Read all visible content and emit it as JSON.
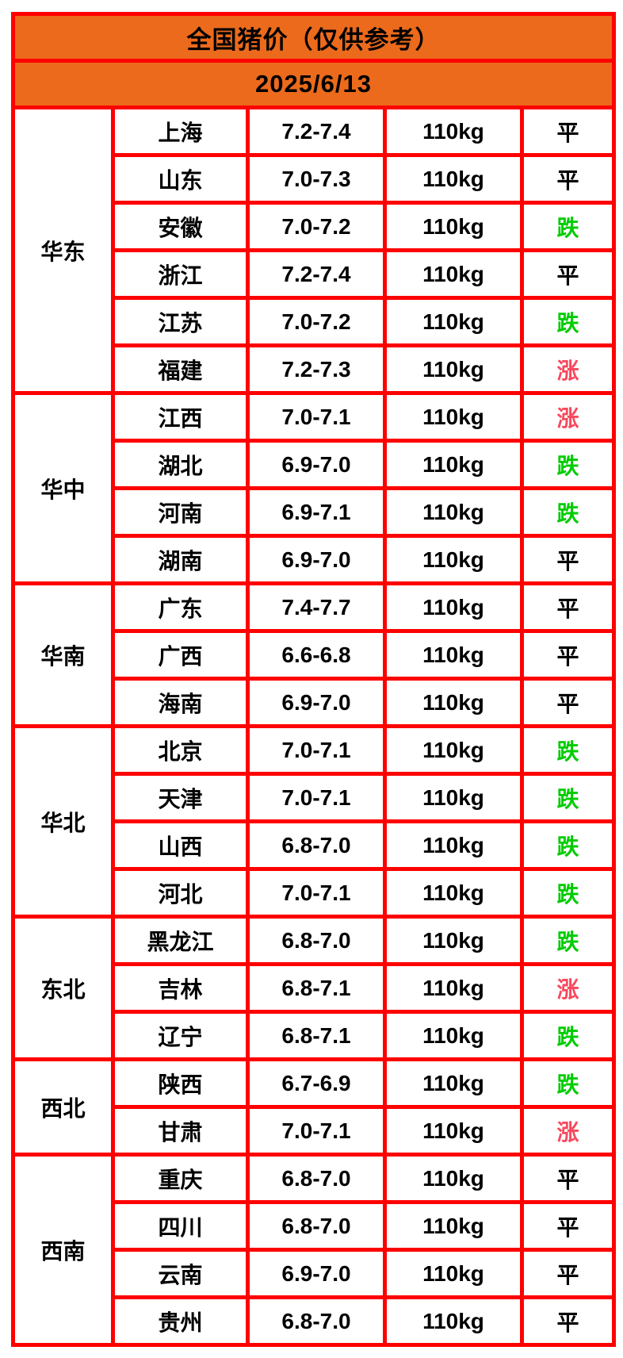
{
  "header": {
    "title": "全国猪价（仅供参考）",
    "date": "2025/6/13"
  },
  "colors": {
    "header_bg": "#EC6A1C",
    "grid": "#FF0000",
    "text": "#000000",
    "up": "#F8485C",
    "down": "#00CC00",
    "flat": "#000000"
  },
  "chart_data": {
    "type": "table",
    "title": "全国猪价（仅供参考）",
    "subtitle": "2025/6/13",
    "rows": [
      [
        "华东",
        "上海",
        "7.2-7.4",
        "110kg",
        "平",
        "flat"
      ],
      [
        "华东",
        "山东",
        "7.0-7.3",
        "110kg",
        "平",
        "flat"
      ],
      [
        "华东",
        "安徽",
        "7.0-7.2",
        "110kg",
        "跌",
        "down"
      ],
      [
        "华东",
        "浙江",
        "7.2-7.4",
        "110kg",
        "平",
        "flat"
      ],
      [
        "华东",
        "江苏",
        "7.0-7.2",
        "110kg",
        "跌",
        "down"
      ],
      [
        "华东",
        "福建",
        "7.2-7.3",
        "110kg",
        "涨",
        "up"
      ],
      [
        "华中",
        "江西",
        "7.0-7.1",
        "110kg",
        "涨",
        "up"
      ],
      [
        "华中",
        "湖北",
        "6.9-7.0",
        "110kg",
        "跌",
        "down"
      ],
      [
        "华中",
        "河南",
        "6.9-7.1",
        "110kg",
        "跌",
        "down"
      ],
      [
        "华中",
        "湖南",
        "6.9-7.0",
        "110kg",
        "平",
        "flat"
      ],
      [
        "华南",
        "广东",
        "7.4-7.7",
        "110kg",
        "平",
        "flat"
      ],
      [
        "华南",
        "广西",
        "6.6-6.8",
        "110kg",
        "平",
        "flat"
      ],
      [
        "华南",
        "海南",
        "6.9-7.0",
        "110kg",
        "平",
        "flat"
      ],
      [
        "华北",
        "北京",
        "7.0-7.1",
        "110kg",
        "跌",
        "down"
      ],
      [
        "华北",
        "天津",
        "7.0-7.1",
        "110kg",
        "跌",
        "down"
      ],
      [
        "华北",
        "山西",
        "6.8-7.0",
        "110kg",
        "跌",
        "down"
      ],
      [
        "华北",
        "河北",
        "7.0-7.1",
        "110kg",
        "跌",
        "down"
      ],
      [
        "东北",
        "黑龙江",
        "6.8-7.0",
        "110kg",
        "跌",
        "down"
      ],
      [
        "东北",
        "吉林",
        "6.8-7.1",
        "110kg",
        "涨",
        "up"
      ],
      [
        "东北",
        "辽宁",
        "6.8-7.1",
        "110kg",
        "跌",
        "down"
      ],
      [
        "西北",
        "陕西",
        "6.7-6.9",
        "110kg",
        "跌",
        "down"
      ],
      [
        "西北",
        "甘肃",
        "7.0-7.1",
        "110kg",
        "涨",
        "up"
      ],
      [
        "西南",
        "重庆",
        "6.8-7.0",
        "110kg",
        "平",
        "flat"
      ],
      [
        "西南",
        "四川",
        "6.8-7.0",
        "110kg",
        "平",
        "flat"
      ],
      [
        "西南",
        "云南",
        "6.9-7.0",
        "110kg",
        "平",
        "flat"
      ],
      [
        "西南",
        "贵州",
        "6.8-7.0",
        "110kg",
        "平",
        "flat"
      ]
    ]
  }
}
